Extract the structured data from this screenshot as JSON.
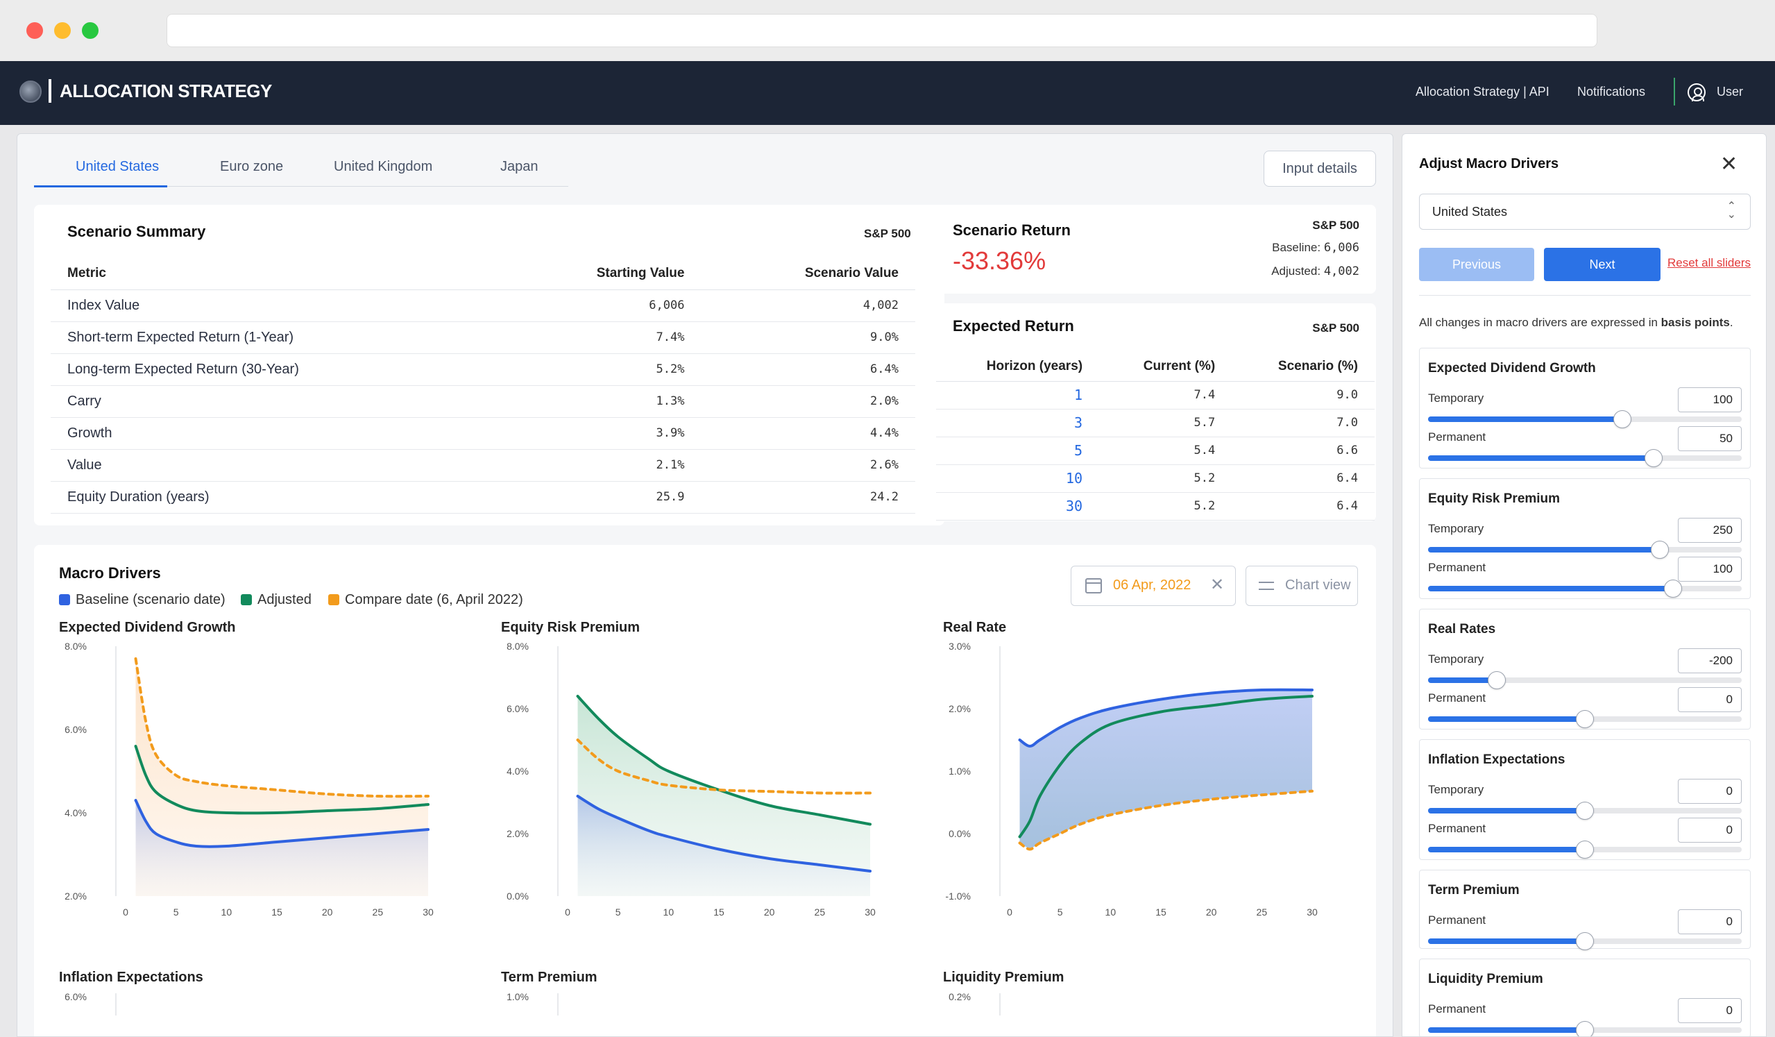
{
  "app": {
    "title": "ALLOCATION STRATEGY",
    "nav_api": "Allocation Strategy | API",
    "nav_notifications": "Notifications",
    "nav_user": "User"
  },
  "tabs": [
    "United States",
    "Euro zone",
    "United Kingdom",
    "Japan"
  ],
  "input_details": "Input details",
  "summary": {
    "title": "Scenario Summary",
    "index": "S&P 500",
    "headers": [
      "Metric",
      "Starting Value",
      "Scenario Value"
    ],
    "rows": [
      [
        "Index Value",
        "6,006",
        "4,002"
      ],
      [
        "Short-term Expected Return (1-Year)",
        "7.4%",
        "9.0%"
      ],
      [
        "Long-term Expected Return (30-Year)",
        "5.2%",
        "6.4%"
      ],
      [
        "Carry",
        "1.3%",
        "2.0%"
      ],
      [
        "Growth",
        "3.9%",
        "4.4%"
      ],
      [
        "Value",
        "2.1%",
        "2.6%"
      ],
      [
        "Equity Duration (years)",
        "25.9",
        "24.2"
      ]
    ]
  },
  "scenario_return": {
    "title": "Scenario Return",
    "value": "-33.36%",
    "index": "S&P 500",
    "baseline_label": "Baseline:",
    "baseline": "6,006",
    "adjusted_label": "Adjusted:",
    "adjusted": "4,002"
  },
  "expected_return": {
    "title": "Expected Return",
    "index": "S&P 500",
    "headers": [
      "Horizon (years)",
      "Current (%)",
      "Scenario (%)"
    ],
    "rows": [
      [
        "1",
        "7.4",
        "9.0"
      ],
      [
        "3",
        "5.7",
        "7.0"
      ],
      [
        "5",
        "5.4",
        "6.6"
      ],
      [
        "10",
        "5.2",
        "6.4"
      ],
      [
        "30",
        "5.2",
        "6.4"
      ]
    ]
  },
  "macro": {
    "title": "Macro Drivers",
    "legend": [
      "Baseline (scenario date)",
      "Adjusted",
      "Compare date (6, April 2022)"
    ],
    "date": "06 Apr, 2022",
    "chart_view": "Chart view"
  },
  "colors": {
    "baseline": "#2f62e0",
    "adjusted": "#128a5c",
    "compare": "#f29b1c",
    "primary": "#2b72e6",
    "header": "#1c2536"
  },
  "chart_data": [
    {
      "type": "line",
      "title": "Expected Dividend Growth",
      "x": [
        1,
        2,
        3,
        5,
        7,
        10,
        15,
        20,
        25,
        30
      ],
      "xticks": [
        "0",
        "5",
        "10",
        "15",
        "20",
        "25",
        "30"
      ],
      "yticks": [
        "8.0%",
        "6.0%",
        "4.0%",
        "2.0%"
      ],
      "ylim": [
        2,
        8
      ],
      "series": [
        {
          "name": "Baseline (scenario date)",
          "values": [
            4.3,
            3.8,
            3.5,
            3.3,
            3.2,
            3.2,
            3.3,
            3.4,
            3.5,
            3.6
          ]
        },
        {
          "name": "Adjusted",
          "values": [
            5.6,
            4.9,
            4.5,
            4.2,
            4.05,
            4.0,
            4.0,
            4.05,
            4.1,
            4.2
          ]
        },
        {
          "name": "Compare date (6, April 2022)",
          "values": [
            7.7,
            6.2,
            5.4,
            4.9,
            4.75,
            4.65,
            4.55,
            4.45,
            4.4,
            4.4
          ]
        }
      ]
    },
    {
      "type": "line",
      "title": "Equity Risk Premium",
      "x": [
        1,
        3,
        5,
        8,
        10,
        15,
        20,
        25,
        30
      ],
      "xticks": [
        "0",
        "5",
        "10",
        "15",
        "20",
        "25",
        "30"
      ],
      "yticks": [
        "8.0%",
        "6.0%",
        "4.0%",
        "2.0%",
        "0.0%"
      ],
      "ylim": [
        0,
        8
      ],
      "series": [
        {
          "name": "Baseline (scenario date)",
          "values": [
            3.2,
            2.8,
            2.5,
            2.1,
            1.9,
            1.5,
            1.2,
            1.0,
            0.8
          ]
        },
        {
          "name": "Adjusted",
          "values": [
            6.4,
            5.7,
            5.1,
            4.4,
            4.0,
            3.4,
            2.9,
            2.6,
            2.3
          ]
        },
        {
          "name": "Compare date (6, April 2022)",
          "values": [
            5.0,
            4.4,
            4.0,
            3.7,
            3.55,
            3.4,
            3.35,
            3.3,
            3.3
          ]
        }
      ]
    },
    {
      "type": "line",
      "title": "Real Rate",
      "x": [
        1,
        2,
        3,
        5,
        7,
        10,
        15,
        20,
        25,
        30
      ],
      "xticks": [
        "0",
        "5",
        "10",
        "15",
        "20",
        "25",
        "30"
      ],
      "yticks": [
        "3.0%",
        "2.0%",
        "1.0%",
        "0.0%",
        "-1.0%"
      ],
      "ylim": [
        -1,
        3
      ],
      "series": [
        {
          "name": "Baseline (scenario date)",
          "values": [
            1.5,
            1.4,
            1.5,
            1.7,
            1.85,
            2.0,
            2.15,
            2.25,
            2.3,
            2.3
          ]
        },
        {
          "name": "Adjusted",
          "values": [
            -0.05,
            0.2,
            0.6,
            1.1,
            1.45,
            1.75,
            1.95,
            2.05,
            2.15,
            2.2
          ]
        },
        {
          "name": "Compare date (6, April 2022)",
          "values": [
            -0.15,
            -0.25,
            -0.15,
            0.0,
            0.15,
            0.3,
            0.45,
            0.55,
            0.62,
            0.68
          ]
        }
      ]
    },
    {
      "type": "line",
      "title": "Inflation Expectations",
      "yticks": [
        "6.0%"
      ]
    },
    {
      "type": "line",
      "title": "Term Premium",
      "yticks": [
        "1.0%"
      ]
    },
    {
      "type": "line",
      "title": "Liquidity Premium",
      "yticks": [
        "0.2%"
      ]
    }
  ],
  "side": {
    "title": "Adjust Macro Drivers",
    "country": "United States",
    "previous": "Previous",
    "next": "Next",
    "reset": "Reset all sliders",
    "note_prefix": "All changes in macro drivers are expressed in ",
    "note_bold": "basis points",
    "note_suffix": ".",
    "temporary_label": "Temporary",
    "permanent_label": "Permanent",
    "drivers": [
      {
        "name": "Expected Dividend Growth",
        "temporary": "100",
        "permanent": "50",
        "temporary_level": 0.62,
        "permanent_level": 0.72
      },
      {
        "name": "Equity Risk Premium",
        "temporary": "250",
        "permanent": "100",
        "temporary_level": 0.74,
        "permanent_level": 0.78
      },
      {
        "name": "Real Rates",
        "temporary": "-200",
        "permanent": "0",
        "temporary_level": 0.22,
        "permanent_level": 0.5
      },
      {
        "name": "Inflation Expectations",
        "temporary": "0",
        "permanent": "0",
        "temporary_level": 0.5,
        "permanent_level": 0.5
      },
      {
        "name": "Term Premium",
        "permanent": "0",
        "permanent_level": 0.5
      },
      {
        "name": "Liquidity Premium",
        "permanent": "0",
        "permanent_level": 0.5
      }
    ]
  }
}
